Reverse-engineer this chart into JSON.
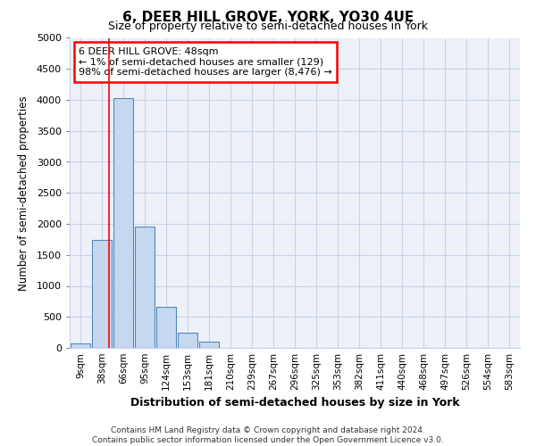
{
  "title": "6, DEER HILL GROVE, YORK, YO30 4UE",
  "subtitle": "Size of property relative to semi-detached houses in York",
  "xlabel": "Distribution of semi-detached houses by size in York",
  "ylabel": "Number of semi-detached properties",
  "bar_labels": [
    "9sqm",
    "38sqm",
    "66sqm",
    "95sqm",
    "124sqm",
    "153sqm",
    "181sqm",
    "210sqm",
    "239sqm",
    "267sqm",
    "296sqm",
    "325sqm",
    "353sqm",
    "382sqm",
    "411sqm",
    "440sqm",
    "468sqm",
    "497sqm",
    "526sqm",
    "554sqm",
    "583sqm"
  ],
  "bar_values": [
    75,
    1740,
    4030,
    1950,
    660,
    240,
    100,
    0,
    0,
    0,
    0,
    0,
    0,
    0,
    0,
    0,
    0,
    0,
    0,
    0,
    0
  ],
  "bar_color": "#c5d8f0",
  "bar_edge_color": "#5588bb",
  "ylim": [
    0,
    5000
  ],
  "yticks": [
    0,
    500,
    1000,
    1500,
    2000,
    2500,
    3000,
    3500,
    4000,
    4500,
    5000
  ],
  "red_line_x": 1.35,
  "annotation_text": "6 DEER HILL GROVE: 48sqm\n← 1% of semi-detached houses are smaller (129)\n98% of semi-detached houses are larger (8,476) →",
  "footer_line1": "Contains HM Land Registry data © Crown copyright and database right 2024.",
  "footer_line2": "Contains public sector information licensed under the Open Government Licence v3.0.",
  "grid_color": "#c8d4e8",
  "bg_color": "#eef2f8"
}
